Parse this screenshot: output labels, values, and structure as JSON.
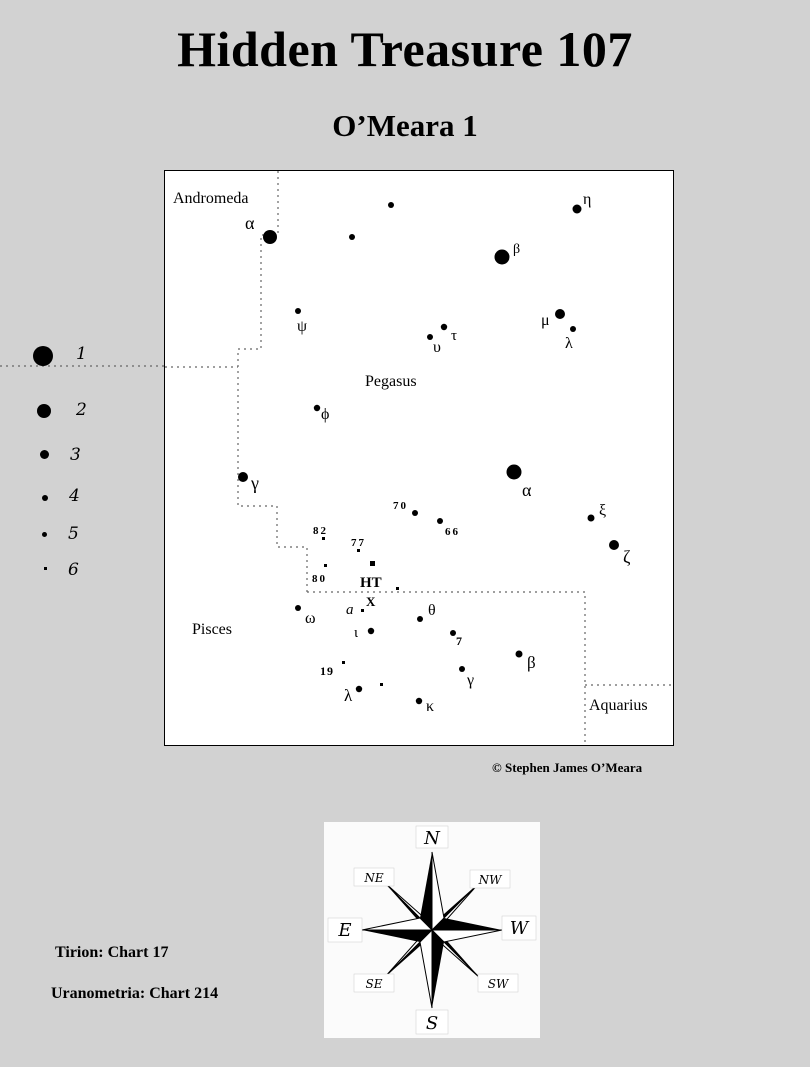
{
  "header": {
    "title": "Hidden Treasure 107",
    "subtitle": "O’Meara 1"
  },
  "map": {
    "constellations": [
      "Andromeda",
      "Pegasus",
      "Pisces",
      "Aquarius"
    ],
    "target_label": "HT",
    "star_labels": [
      "α",
      "η",
      "β",
      "ψ",
      "μ",
      "λ",
      "υ",
      "τ",
      "ϕ",
      "α",
      "γ",
      "70",
      "66",
      "ξ",
      "ζ",
      "82",
      "77",
      "80",
      "a",
      "X",
      "θ",
      "ω",
      "ι",
      "7",
      "β",
      "19",
      "γ",
      "λ",
      "κ"
    ],
    "credit": "© Stephen James O’Meara"
  },
  "legend": {
    "magnitudes": [
      "1",
      "2",
      "3",
      "4",
      "5",
      "6"
    ]
  },
  "compass": {
    "directions": [
      "N",
      "NE",
      "NW",
      "E",
      "W",
      "SE",
      "SW",
      "S"
    ]
  },
  "atlases": [
    {
      "name": "Tirion",
      "chart": "Tirion: Chart 17"
    },
    {
      "name": "Uranometria",
      "chart": "Uranometria: Chart 214"
    }
  ]
}
